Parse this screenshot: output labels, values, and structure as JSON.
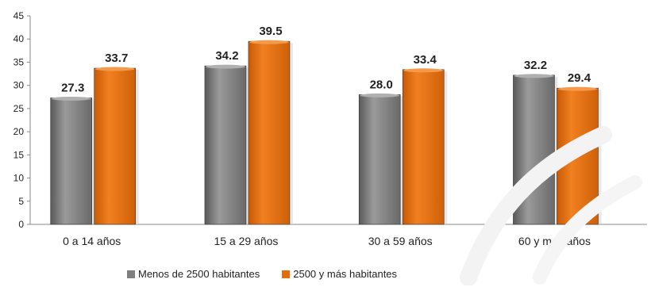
{
  "chart_data": {
    "type": "bar",
    "categories": [
      "0 a 14 años",
      "15 a 29 años",
      "30 a 59 años",
      "60 y más años"
    ],
    "series": [
      {
        "name": "Menos de 2500 habitantes",
        "values": [
          27.3,
          34.2,
          28.0,
          32.2
        ],
        "color": "#7f7f7f"
      },
      {
        "name": "2500 y más habitantes",
        "values": [
          33.7,
          39.5,
          33.4,
          29.4
        ],
        "color": "#e86c0a"
      }
    ],
    "value_labels": [
      [
        "27.3",
        "34.2",
        "28.0",
        "32.2"
      ],
      [
        "33.7",
        "39.5",
        "33.4",
        "29.4"
      ]
    ],
    "y_ticks": [
      "0",
      "5",
      "10",
      "15",
      "20",
      "25",
      "30",
      "35",
      "40",
      "45"
    ],
    "ylim": [
      0,
      45
    ],
    "grid": false,
    "legend_position": "bottom"
  }
}
